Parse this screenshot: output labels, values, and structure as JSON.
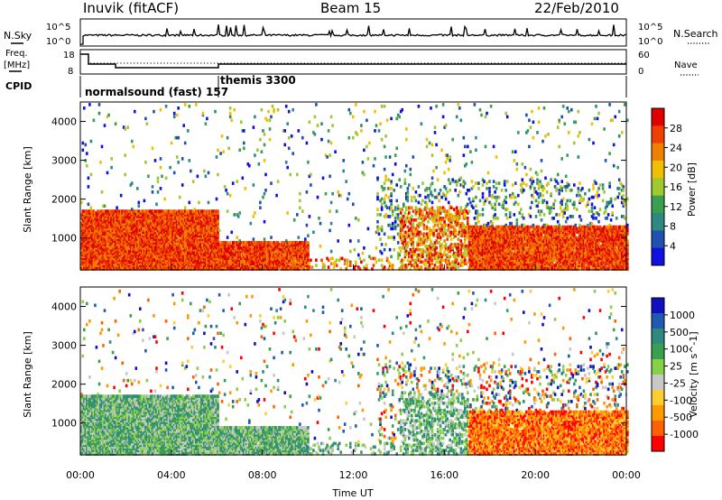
{
  "header": {
    "station": "Inuvik (fitACF)",
    "beam": "Beam 15",
    "date": "22/Feb/2010"
  },
  "left_labels": {
    "nsky": "N.Sky",
    "freq_top": "Freq.",
    "freq_unit": "[MHz]",
    "cpid": "CPID"
  },
  "right_labels": {
    "nsearch": "N.Search",
    "nave": "Nave"
  },
  "cpid_labels": [
    "normalsound (fast) 157",
    "themis 3300"
  ],
  "panels": {
    "nsky_ticks": [
      "10^5",
      "10^0"
    ],
    "nsearch_ticks": [
      "10^5",
      "10^0"
    ],
    "freq_ticks": [
      "18",
      "8"
    ],
    "nave_ticks": [
      "60",
      "0"
    ]
  },
  "colors": {
    "power": [
      "#1010e0",
      "#2050b0",
      "#2e8a80",
      "#3aa050",
      "#a0c830",
      "#f0c000",
      "#f08000",
      "#f04000",
      "#e00000"
    ],
    "velocity": [
      "#ff0000",
      "#ff6000",
      "#ff9900",
      "#ffcc33",
      "#c8c8c8",
      "#88d048",
      "#3aa050",
      "#2e8a80",
      "#205ab0",
      "#1010c0"
    ]
  },
  "chart_data": [
    {
      "type": "heatmap",
      "title": "Power",
      "xlabel": "",
      "ylabel": "Slant Range [km]",
      "y_ticks": [
        1000,
        2000,
        3000,
        4000
      ],
      "ylim": [
        180,
        4500
      ],
      "colorbar_label": "Power [dB]",
      "colorbar_ticks": [
        "28",
        "24",
        "20",
        "16",
        "12",
        "8",
        "4"
      ]
    },
    {
      "type": "heatmap",
      "title": "Velocity",
      "xlabel": "Time UT",
      "ylabel": "Slant Range [km]",
      "x_ticks": [
        "00:00",
        "04:00",
        "08:00",
        "12:00",
        "16:00",
        "20:00",
        "00:00"
      ],
      "y_ticks": [
        1000,
        2000,
        3000,
        4000
      ],
      "ylim": [
        180,
        4500
      ],
      "colorbar_label": "Velocity [m s^-1]",
      "colorbar_ticks": [
        "1000",
        "500",
        "100",
        "25",
        "-25",
        "-100",
        "-500",
        "-1000"
      ]
    }
  ]
}
